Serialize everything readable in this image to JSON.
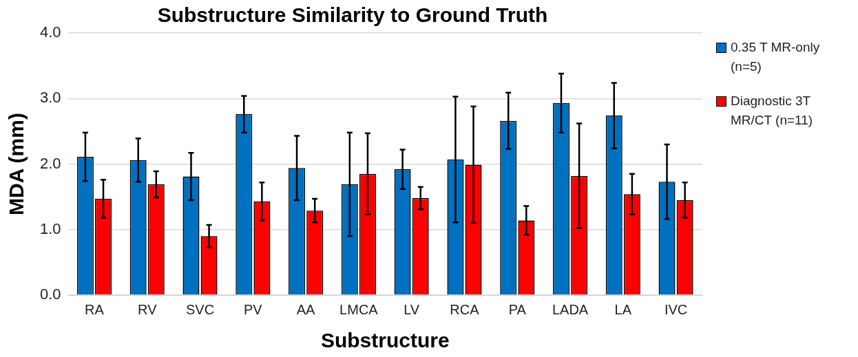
{
  "chart_data": {
    "type": "bar",
    "title": "Substructure Similarity to Ground Truth",
    "xlabel": "Substructure",
    "ylabel": "MDA (mm)",
    "categories": [
      "RA",
      "RV",
      "SVC",
      "PV",
      "AA",
      "LMCA",
      "LV",
      "RCA",
      "PA",
      "LADA",
      "LA",
      "IVC"
    ],
    "series": [
      {
        "name": "0.35 T MR-only (n=5)",
        "color": "#0070c0",
        "values": [
          2.11,
          2.06,
          1.81,
          2.76,
          1.94,
          1.69,
          1.92,
          2.07,
          2.66,
          2.93,
          2.74,
          1.73
        ],
        "errors": [
          0.37,
          0.33,
          0.36,
          0.28,
          0.49,
          0.79,
          0.3,
          0.96,
          0.43,
          0.45,
          0.5,
          0.57
        ]
      },
      {
        "name": "Diagnostic 3T MR/CT (n=11)",
        "color": "#ff0000",
        "values": [
          1.47,
          1.69,
          0.9,
          1.43,
          1.29,
          1.85,
          1.48,
          1.99,
          1.14,
          1.82,
          1.54,
          1.45
        ],
        "errors": [
          0.29,
          0.2,
          0.17,
          0.29,
          0.18,
          0.62,
          0.17,
          0.89,
          0.22,
          0.8,
          0.31,
          0.27
        ]
      }
    ],
    "ylim": [
      0,
      4
    ],
    "yticks": [
      {
        "value": 0,
        "label": "0.0"
      },
      {
        "value": 1,
        "label": "1.0"
      },
      {
        "value": 2,
        "label": "2.0"
      },
      {
        "value": 3,
        "label": "3.0"
      },
      {
        "value": 4,
        "label": "4.0"
      }
    ],
    "grid": "y",
    "legend": "right"
  }
}
